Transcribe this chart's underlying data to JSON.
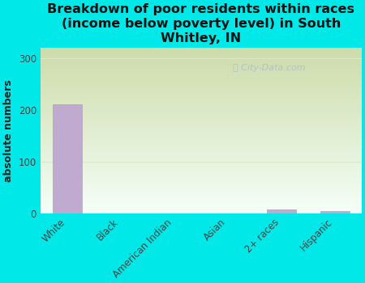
{
  "title": "Breakdown of poor residents within races\n(income below poverty level) in South\nWhitley, IN",
  "ylabel": "absolute numbers",
  "categories": [
    "White",
    "Black",
    "American Indian",
    "Asian",
    "2+ races",
    "Hispanic"
  ],
  "values": [
    211,
    0,
    0,
    0,
    7,
    4
  ],
  "bar_color": "#c0aad0",
  "bar_edge_color": "#b090c0",
  "ylim": [
    0,
    320
  ],
  "yticks": [
    0,
    100,
    200,
    300
  ],
  "background_color": "#00e8e8",
  "plot_bg_top_left": "#c8ddb0",
  "plot_bg_top_right": "#e8f0e0",
  "plot_bg_bottom": "#f0fff0",
  "grid_color": "#e0e8d8",
  "watermark": "City-Data.com",
  "title_fontsize": 11.5,
  "ylabel_fontsize": 9,
  "tick_fontsize": 8.5
}
